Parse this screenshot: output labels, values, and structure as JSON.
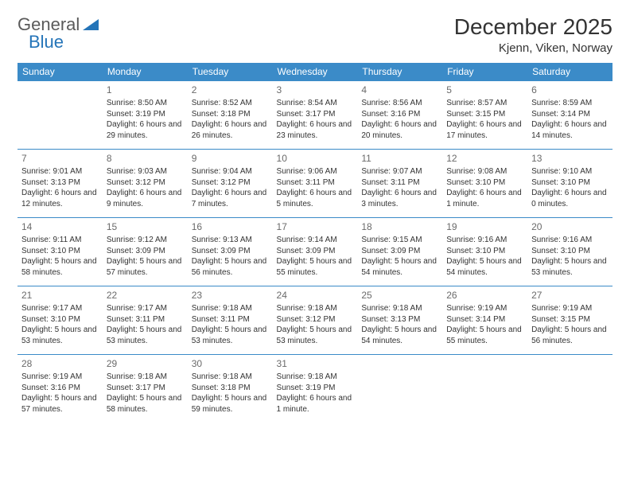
{
  "logo": {
    "general": "General",
    "blue": "Blue"
  },
  "header": {
    "month_title": "December 2025",
    "location": "Kjenn, Viken, Norway"
  },
  "colors": {
    "header_bg": "#3b8bc8",
    "header_text": "#ffffff",
    "rule": "#3b8bc8",
    "logo_gray": "#5a5a5a",
    "logo_blue": "#2474b8"
  },
  "weekdays": [
    "Sunday",
    "Monday",
    "Tuesday",
    "Wednesday",
    "Thursday",
    "Friday",
    "Saturday"
  ],
  "weeks": [
    [
      null,
      {
        "n": "1",
        "sr": "Sunrise: 8:50 AM",
        "ss": "Sunset: 3:19 PM",
        "dl": "Daylight: 6 hours and 29 minutes."
      },
      {
        "n": "2",
        "sr": "Sunrise: 8:52 AM",
        "ss": "Sunset: 3:18 PM",
        "dl": "Daylight: 6 hours and 26 minutes."
      },
      {
        "n": "3",
        "sr": "Sunrise: 8:54 AM",
        "ss": "Sunset: 3:17 PM",
        "dl": "Daylight: 6 hours and 23 minutes."
      },
      {
        "n": "4",
        "sr": "Sunrise: 8:56 AM",
        "ss": "Sunset: 3:16 PM",
        "dl": "Daylight: 6 hours and 20 minutes."
      },
      {
        "n": "5",
        "sr": "Sunrise: 8:57 AM",
        "ss": "Sunset: 3:15 PM",
        "dl": "Daylight: 6 hours and 17 minutes."
      },
      {
        "n": "6",
        "sr": "Sunrise: 8:59 AM",
        "ss": "Sunset: 3:14 PM",
        "dl": "Daylight: 6 hours and 14 minutes."
      }
    ],
    [
      {
        "n": "7",
        "sr": "Sunrise: 9:01 AM",
        "ss": "Sunset: 3:13 PM",
        "dl": "Daylight: 6 hours and 12 minutes."
      },
      {
        "n": "8",
        "sr": "Sunrise: 9:03 AM",
        "ss": "Sunset: 3:12 PM",
        "dl": "Daylight: 6 hours and 9 minutes."
      },
      {
        "n": "9",
        "sr": "Sunrise: 9:04 AM",
        "ss": "Sunset: 3:12 PM",
        "dl": "Daylight: 6 hours and 7 minutes."
      },
      {
        "n": "10",
        "sr": "Sunrise: 9:06 AM",
        "ss": "Sunset: 3:11 PM",
        "dl": "Daylight: 6 hours and 5 minutes."
      },
      {
        "n": "11",
        "sr": "Sunrise: 9:07 AM",
        "ss": "Sunset: 3:11 PM",
        "dl": "Daylight: 6 hours and 3 minutes."
      },
      {
        "n": "12",
        "sr": "Sunrise: 9:08 AM",
        "ss": "Sunset: 3:10 PM",
        "dl": "Daylight: 6 hours and 1 minute."
      },
      {
        "n": "13",
        "sr": "Sunrise: 9:10 AM",
        "ss": "Sunset: 3:10 PM",
        "dl": "Daylight: 6 hours and 0 minutes."
      }
    ],
    [
      {
        "n": "14",
        "sr": "Sunrise: 9:11 AM",
        "ss": "Sunset: 3:10 PM",
        "dl": "Daylight: 5 hours and 58 minutes."
      },
      {
        "n": "15",
        "sr": "Sunrise: 9:12 AM",
        "ss": "Sunset: 3:09 PM",
        "dl": "Daylight: 5 hours and 57 minutes."
      },
      {
        "n": "16",
        "sr": "Sunrise: 9:13 AM",
        "ss": "Sunset: 3:09 PM",
        "dl": "Daylight: 5 hours and 56 minutes."
      },
      {
        "n": "17",
        "sr": "Sunrise: 9:14 AM",
        "ss": "Sunset: 3:09 PM",
        "dl": "Daylight: 5 hours and 55 minutes."
      },
      {
        "n": "18",
        "sr": "Sunrise: 9:15 AM",
        "ss": "Sunset: 3:09 PM",
        "dl": "Daylight: 5 hours and 54 minutes."
      },
      {
        "n": "19",
        "sr": "Sunrise: 9:16 AM",
        "ss": "Sunset: 3:10 PM",
        "dl": "Daylight: 5 hours and 54 minutes."
      },
      {
        "n": "20",
        "sr": "Sunrise: 9:16 AM",
        "ss": "Sunset: 3:10 PM",
        "dl": "Daylight: 5 hours and 53 minutes."
      }
    ],
    [
      {
        "n": "21",
        "sr": "Sunrise: 9:17 AM",
        "ss": "Sunset: 3:10 PM",
        "dl": "Daylight: 5 hours and 53 minutes."
      },
      {
        "n": "22",
        "sr": "Sunrise: 9:17 AM",
        "ss": "Sunset: 3:11 PM",
        "dl": "Daylight: 5 hours and 53 minutes."
      },
      {
        "n": "23",
        "sr": "Sunrise: 9:18 AM",
        "ss": "Sunset: 3:11 PM",
        "dl": "Daylight: 5 hours and 53 minutes."
      },
      {
        "n": "24",
        "sr": "Sunrise: 9:18 AM",
        "ss": "Sunset: 3:12 PM",
        "dl": "Daylight: 5 hours and 53 minutes."
      },
      {
        "n": "25",
        "sr": "Sunrise: 9:18 AM",
        "ss": "Sunset: 3:13 PM",
        "dl": "Daylight: 5 hours and 54 minutes."
      },
      {
        "n": "26",
        "sr": "Sunrise: 9:19 AM",
        "ss": "Sunset: 3:14 PM",
        "dl": "Daylight: 5 hours and 55 minutes."
      },
      {
        "n": "27",
        "sr": "Sunrise: 9:19 AM",
        "ss": "Sunset: 3:15 PM",
        "dl": "Daylight: 5 hours and 56 minutes."
      }
    ],
    [
      {
        "n": "28",
        "sr": "Sunrise: 9:19 AM",
        "ss": "Sunset: 3:16 PM",
        "dl": "Daylight: 5 hours and 57 minutes."
      },
      {
        "n": "29",
        "sr": "Sunrise: 9:18 AM",
        "ss": "Sunset: 3:17 PM",
        "dl": "Daylight: 5 hours and 58 minutes."
      },
      {
        "n": "30",
        "sr": "Sunrise: 9:18 AM",
        "ss": "Sunset: 3:18 PM",
        "dl": "Daylight: 5 hours and 59 minutes."
      },
      {
        "n": "31",
        "sr": "Sunrise: 9:18 AM",
        "ss": "Sunset: 3:19 PM",
        "dl": "Daylight: 6 hours and 1 minute."
      },
      null,
      null,
      null
    ]
  ]
}
